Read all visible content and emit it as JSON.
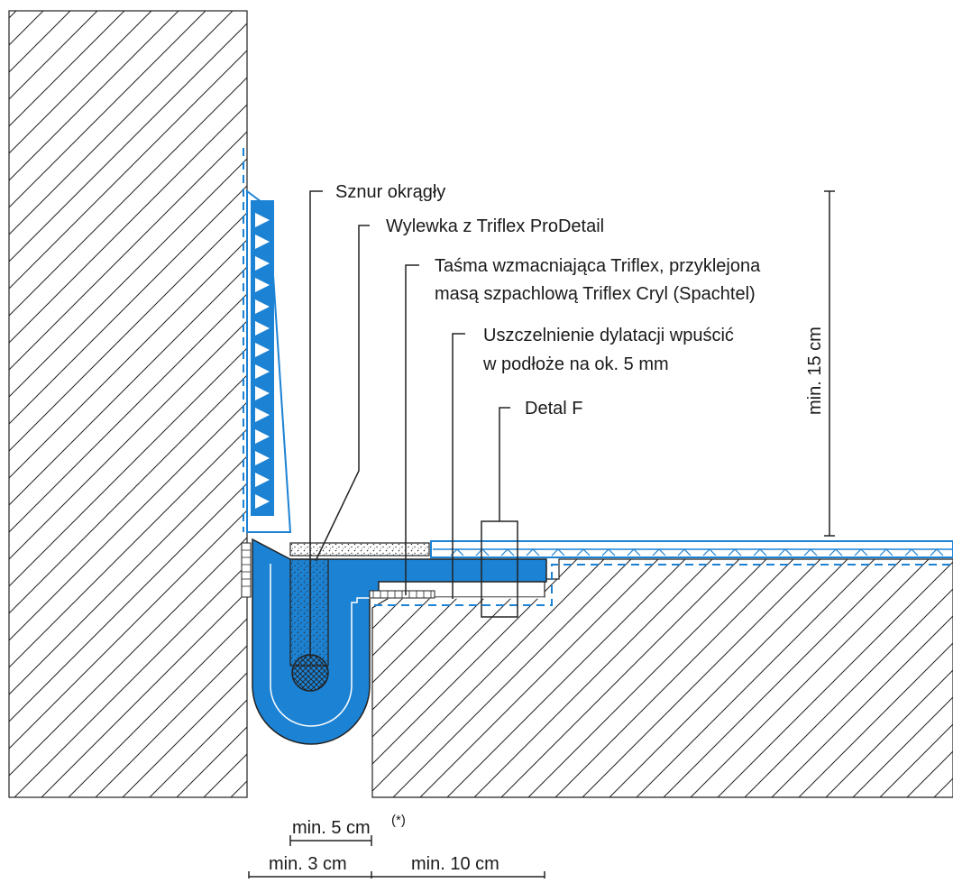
{
  "labels": {
    "round_cord": "Sznur okrągły",
    "prodetail": "Wylewka z Triflex ProDetail",
    "tape_line1": "Taśma wzmacniająca Triflex, przyklejona",
    "tape_line2": "masą szpachlową Triflex Cryl (Spachtel)",
    "seal_line1": "Uszczelnienie dylatacji wpuścić",
    "seal_line2": "w podłoże na ok. 5 mm",
    "detail_f": "Detal F"
  },
  "dimensions": {
    "height": "min. 15 cm",
    "top_span": "min. 5 cm",
    "top_span_note": "(*)",
    "left_span": "min. 3 cm",
    "right_span": "min. 10 cm"
  },
  "colors": {
    "membrane": "#1c82d4",
    "line": "#1a1a1a",
    "hatch": "#222222"
  }
}
